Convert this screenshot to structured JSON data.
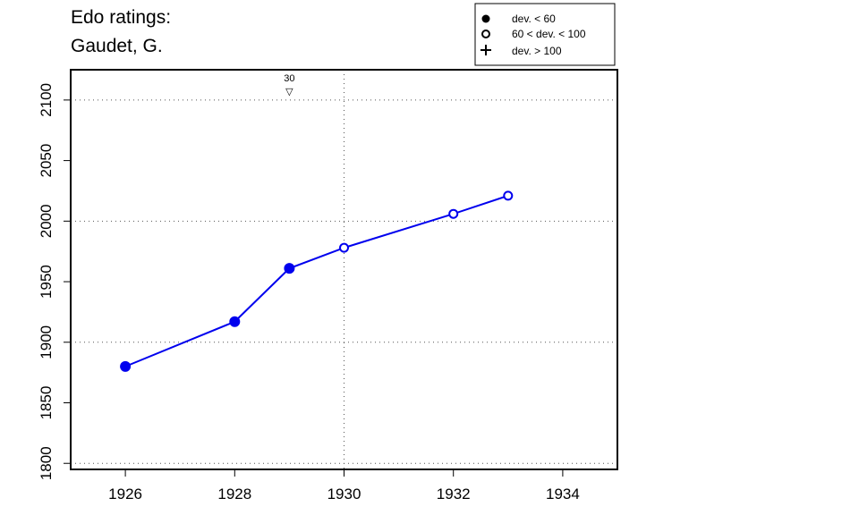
{
  "chart_data": {
    "type": "line",
    "title_lines": [
      "Edo ratings:",
      "Gaudet, G."
    ],
    "xlim": [
      1925,
      1935
    ],
    "ylim": [
      1795,
      2125
    ],
    "x_ticks": [
      1926,
      1928,
      1930,
      1932,
      1934
    ],
    "y_ticks": [
      1800,
      1850,
      1900,
      1950,
      2000,
      2050,
      2100
    ],
    "x_grid": [
      1925,
      1930,
      1935
    ],
    "y_grid": [
      1800,
      1900,
      2000,
      2100
    ],
    "grid": true,
    "line_color": "#0000ee",
    "series": [
      {
        "x": [
          1926,
          1928,
          1929,
          1930,
          1932,
          1933
        ],
        "y": [
          1880,
          1917,
          1961,
          1978,
          2006,
          2021
        ],
        "marker": [
          "filled",
          "filled",
          "filled",
          "open",
          "open",
          "open"
        ]
      }
    ],
    "annotations": [
      {
        "x": 1929,
        "label": "30",
        "symbol": "▽"
      }
    ],
    "legend": {
      "position": "top-right",
      "entries": [
        {
          "symbol": "filled-circle",
          "label": "dev. < 60"
        },
        {
          "symbol": "open-circle",
          "label": "60 < dev. < 100"
        },
        {
          "symbol": "plus",
          "label": "dev. > 100"
        }
      ]
    }
  }
}
